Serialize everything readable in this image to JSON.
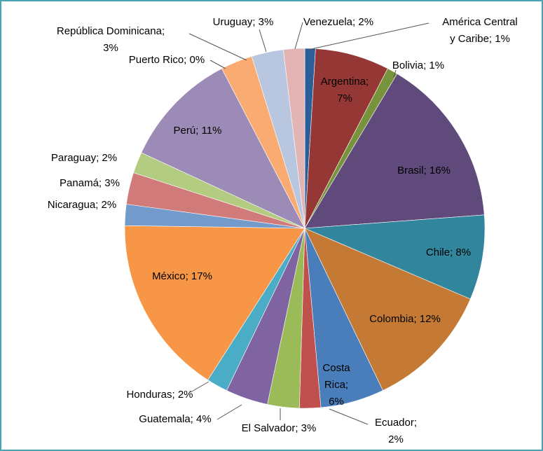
{
  "chart_data": {
    "type": "pie",
    "values": [
      1,
      7,
      1,
      16,
      8,
      12,
      6,
      2,
      3,
      4,
      2,
      17,
      2,
      3,
      2,
      11,
      0,
      3,
      3,
      2
    ],
    "value_labels": [
      "América Central\ny Caribe; 1%",
      "Argentina;\n7%",
      "Bolivia; 1%",
      "Brasil; 16%",
      "Chile; 8%",
      "Colombia; 12%",
      "Costa\nRica;\n6%",
      "Ecuador;\n2%",
      "El Salvador; 3%",
      "Guatemala; 4%",
      "Honduras; 2%",
      "México; 17%",
      "Nicaragua; 2%",
      "Panamá; 3%",
      "Paraguay; 2%",
      "Perú; 11%",
      "Puerto Rico; 0%",
      "República Dominicana;\n3%",
      "Uruguay; 3%",
      "Venezuela; 2%"
    ],
    "colors": [
      "#2c5f9a",
      "#953735",
      "#77933c",
      "#604a7b",
      "#31859c",
      "#c47a34",
      "#4a7ebb",
      "#c0504d",
      "#9bbb59",
      "#8064a2",
      "#4bacc6",
      "#f79646",
      "#729aca",
      "#d07b7a",
      "#b3cc82",
      "#9d8bb7",
      "#6fc1d8",
      "#f9ab72",
      "#b9c6e0",
      "#e3b4b4"
    ]
  }
}
